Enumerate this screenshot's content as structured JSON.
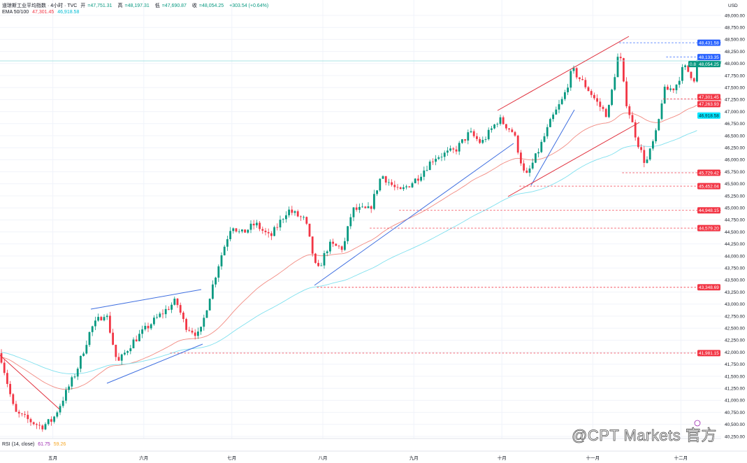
{
  "header": {
    "symbol": "道琼斯工业平均指数 · 4小时 · TVC",
    "open_label": "开",
    "open": "47,751.31",
    "high_label": "高",
    "high": "48,197.31",
    "low_label": "低",
    "low": "47,690.87",
    "close_label": "收",
    "close": "48,054.25",
    "change": "+303.54 (+0.64%)",
    "ema_label": "EMA 50/100",
    "ema50": "47,301.45",
    "ema100": "46,918.58"
  },
  "rsi": {
    "label": "RSI (14, close)",
    "value1": "61.75",
    "value2": "59.26"
  },
  "currency": "USD",
  "countdown": "0.8",
  "watermark": "@CPT Markets 官方",
  "colors": {
    "up": "#089981",
    "down": "#f23645",
    "ema50": "#f28b82",
    "ema100": "#7fe0ee",
    "trend_blue": "#3f6fe0",
    "trend_red": "#e0303d",
    "level_red": "#f23645",
    "level_blue": "#2962ff"
  },
  "chart_data": {
    "type": "candlestick",
    "interval": "4小时",
    "ylim": [
      40300,
      49100
    ],
    "y_ticks": [
      "49,000.00",
      "48,750.00",
      "48,500.00",
      "48,250.00",
      "48,000.00",
      "47,750.00",
      "47,500.00",
      "47,250.00",
      "47,000.00",
      "46,750.00",
      "46,500.00",
      "46,250.00",
      "46,000.00",
      "45,750.00",
      "45,500.00",
      "45,250.00",
      "45,000.00",
      "44,750.00",
      "44,500.00",
      "44,250.00",
      "44,000.00",
      "43,750.00",
      "43,500.00",
      "43,250.00",
      "43,000.00",
      "42,750.00",
      "42,500.00",
      "42,250.00",
      "42,000.00",
      "41,750.00",
      "41,500.00",
      "41,250.00",
      "41,000.00",
      "40,750.00",
      "40,500.00",
      "40,250.00"
    ],
    "x_ticks": [
      {
        "label": "五月",
        "date": "2025-05-01"
      },
      {
        "label": "六月",
        "date": "2025-06-01"
      },
      {
        "label": "七月",
        "date": "2025-07-01"
      },
      {
        "label": "八月",
        "date": "2025-08-01"
      },
      {
        "label": "九月",
        "date": "2025-09-01"
      },
      {
        "label": "十月",
        "date": "2025-10-01"
      },
      {
        "label": "十一月",
        "date": "2025-11-01"
      },
      {
        "label": "十二月",
        "date": "2025-12-01"
      }
    ],
    "price_path": [
      [
        "2025-04-13",
        41980
      ],
      [
        "2025-04-18",
        40745
      ],
      [
        "2025-04-27",
        40450
      ],
      [
        "2025-05-01",
        40600
      ],
      [
        "2025-05-09",
        41600
      ],
      [
        "2025-05-14",
        42490
      ],
      [
        "2025-05-19",
        42850
      ],
      [
        "2025-05-23",
        41760
      ],
      [
        "2025-05-28",
        42200
      ],
      [
        "2025-06-04",
        42630
      ],
      [
        "2025-06-12",
        43070
      ],
      [
        "2025-06-15",
        42560
      ],
      [
        "2025-06-20",
        42340
      ],
      [
        "2025-06-23",
        43070
      ],
      [
        "2025-06-27",
        43940
      ],
      [
        "2025-07-01",
        44670
      ],
      [
        "2025-07-04",
        44450
      ],
      [
        "2025-07-09",
        44670
      ],
      [
        "2025-07-14",
        44380
      ],
      [
        "2025-07-20",
        44960
      ],
      [
        "2025-07-26",
        44740
      ],
      [
        "2025-07-30",
        43650
      ],
      [
        "2025-08-03",
        44230
      ],
      [
        "2025-08-08",
        44160
      ],
      [
        "2025-08-11",
        44960
      ],
      [
        "2025-08-17",
        44960
      ],
      [
        "2025-08-21",
        45690
      ],
      [
        "2025-08-27",
        45320
      ],
      [
        "2025-09-02",
        45610
      ],
      [
        "2025-09-08",
        46050
      ],
      [
        "2025-09-15",
        46190
      ],
      [
        "2025-09-20",
        46560
      ],
      [
        "2025-09-24",
        46340
      ],
      [
        "2025-09-30",
        46850
      ],
      [
        "2025-10-05",
        46560
      ],
      [
        "2025-10-09",
        45610
      ],
      [
        "2025-10-13",
        46120
      ],
      [
        "2025-10-18",
        46850
      ],
      [
        "2025-10-22",
        47290
      ],
      [
        "2025-10-25",
        47870
      ],
      [
        "2025-10-30",
        47500
      ],
      [
        "2025-11-03",
        47140
      ],
      [
        "2025-11-06",
        46920
      ],
      [
        "2025-11-10",
        48300
      ],
      [
        "2025-11-12",
        47290
      ],
      [
        "2025-11-16",
        46410
      ],
      [
        "2025-11-19",
        45900
      ],
      [
        "2025-11-23",
        46630
      ],
      [
        "2025-11-25",
        47430
      ],
      [
        "2025-11-29",
        47500
      ],
      [
        "2025-12-02",
        47940
      ],
      [
        "2025-12-06",
        47650
      ],
      [
        "2025-12-07",
        48054.25
      ]
    ],
    "current_price": {
      "value": 48054.25,
      "label": "48,054.25"
    },
    "levels": [
      {
        "value": 48431.58,
        "label": "48,431.58",
        "kind": "blue",
        "from": "2025-11-10"
      },
      {
        "value": 48133.35,
        "label": "48,133.35",
        "kind": "blue",
        "from": "2025-11-26"
      },
      {
        "value": 47301.45,
        "label": "47,301.45",
        "kind": "ema50",
        "from": null
      },
      {
        "value": 47263.93,
        "label": "47,263.93",
        "kind": "red",
        "from": "2025-11-25"
      },
      {
        "value": 46918.58,
        "label": "46,918.58",
        "kind": "ema100",
        "from": null
      },
      {
        "value": 45729.42,
        "label": "45,729.42",
        "kind": "red",
        "from": "2025-11-11"
      },
      {
        "value": 45452.04,
        "label": "45,452.04",
        "kind": "red",
        "from": "2025-10-07"
      },
      {
        "value": 44948.15,
        "label": "44,948.15",
        "kind": "red",
        "from": "2025-08-27"
      },
      {
        "value": 44579.2,
        "label": "44,579.20",
        "kind": "red",
        "from": "2025-08-17"
      },
      {
        "value": 43348.69,
        "label": "43,348.69",
        "kind": "red",
        "from": "2025-07-30"
      },
      {
        "value": 41981.15,
        "label": "41,981.15",
        "kind": "red",
        "from": "2025-06-10"
      }
    ],
    "indicators": [
      "EMA 50",
      "EMA 100"
    ]
  }
}
